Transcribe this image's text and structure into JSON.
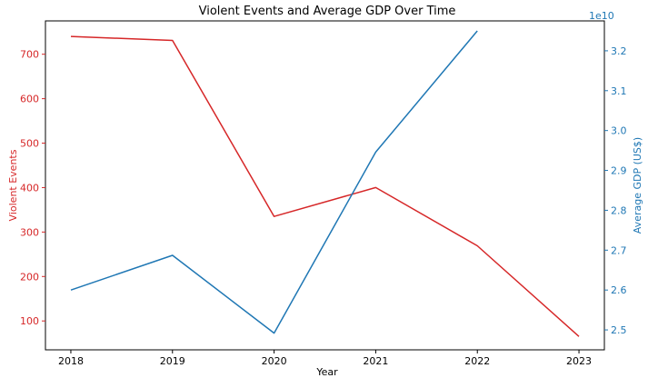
{
  "chart_data": {
    "type": "line",
    "title": "Violent Events and Average GDP Over Time",
    "xlabel": "Year",
    "x": [
      2018,
      2019,
      2020,
      2021,
      2022,
      2023
    ],
    "xlim": [
      2017.75,
      2023.25
    ],
    "grid": false,
    "legend": "none",
    "left_axis": {
      "label": "Violent Events",
      "color": "#d62728",
      "ylim": [
        35,
        775
      ],
      "ticks": [
        100,
        200,
        300,
        400,
        500,
        600,
        700
      ],
      "tick_labels": [
        "100",
        "200",
        "300",
        "400",
        "500",
        "600",
        "700"
      ]
    },
    "right_axis": {
      "label": "Average GDP (US$)",
      "color": "#1f77b4",
      "offset_text": "1e10",
      "ylim": [
        2.45,
        3.275
      ],
      "ticks": [
        2.5,
        2.6,
        2.7,
        2.8,
        2.9,
        3.0,
        3.1,
        3.2
      ],
      "tick_labels": [
        "2.5",
        "2.6",
        "2.7",
        "2.8",
        "2.9",
        "3.0",
        "3.1",
        "3.2"
      ]
    },
    "series": [
      {
        "axis": "left",
        "color": "#d62728",
        "x": [
          2018,
          2019,
          2020,
          2021,
          2022,
          2023
        ],
        "values": [
          740,
          731,
          335,
          400,
          269,
          65
        ]
      },
      {
        "axis": "right",
        "color": "#1f77b4",
        "x": [
          2018,
          2019,
          2020,
          2021,
          2022
        ],
        "values": [
          2.6,
          2.687,
          2.492,
          2.946,
          3.25
        ]
      }
    ]
  }
}
